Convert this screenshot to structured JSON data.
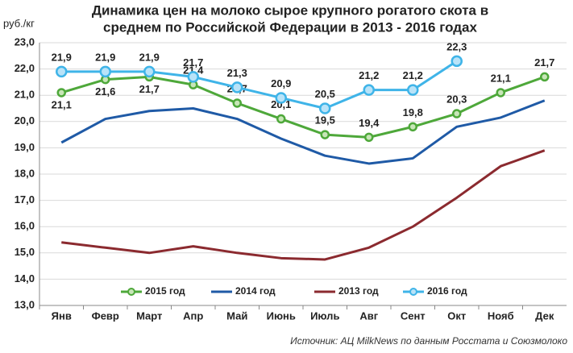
{
  "chart_data": {
    "type": "line",
    "title": [
      "Динамика цен на молоко сырое крупного рогатого скота в",
      "среднем по Российской Федерации в 2013 - 2016 годах"
    ],
    "y_label": "руб./кг",
    "source": "Источник: АЦ MilkNews по данным Росстата и Союзмолоко",
    "categories": [
      "Янв",
      "Февр",
      "Март",
      "Апр",
      "Май",
      "Июнь",
      "Июль",
      "Авг",
      "Сент",
      "Окт",
      "Нояб",
      "Дек"
    ],
    "ylim": [
      13,
      23
    ],
    "yticks": [
      {
        "value": 13,
        "label": "13,0"
      },
      {
        "value": 14,
        "label": "14,0"
      },
      {
        "value": 15,
        "label": "15,0"
      },
      {
        "value": 16,
        "label": "16,0"
      },
      {
        "value": 17,
        "label": "17,0"
      },
      {
        "value": 18,
        "label": "18,0"
      },
      {
        "value": 19,
        "label": "19,0"
      },
      {
        "value": 20,
        "label": "20,0"
      },
      {
        "value": 21,
        "label": "21,0"
      },
      {
        "value": 22,
        "label": "22,0"
      },
      {
        "value": 23,
        "label": "23,0"
      }
    ],
    "grid": true,
    "legend": "bottom",
    "series": [
      {
        "name": "2015 год",
        "color": "#4ea83a",
        "markers": true,
        "label_color": "#4a5a18",
        "values": [
          21.1,
          21.6,
          21.7,
          21.4,
          20.7,
          20.1,
          19.5,
          19.4,
          19.8,
          20.3,
          21.1,
          21.7
        ],
        "value_labels": [
          "21,1",
          "21,6",
          "21,7",
          "21,4",
          "20,7",
          "20,1",
          "19,5",
          "19,4",
          "19,8",
          "20,3",
          "21,1",
          "21,7"
        ]
      },
      {
        "name": "2014 год",
        "color": "#1f5aa6",
        "markers": false,
        "values": [
          19.2,
          20.1,
          20.4,
          20.5,
          20.1,
          19.35,
          18.7,
          18.4,
          18.6,
          19.8,
          20.15,
          20.8
        ]
      },
      {
        "name": "2013 год",
        "color": "#8b2a2f",
        "markers": false,
        "values": [
          15.4,
          15.2,
          15.0,
          15.25,
          15.0,
          14.8,
          14.75,
          15.2,
          16.0,
          17.1,
          18.3,
          18.9
        ]
      },
      {
        "name": "2016 год",
        "color": "#3fb4e8",
        "markers": true,
        "label_color": "#2a7dc2",
        "values": [
          21.9,
          21.9,
          21.9,
          21.7,
          21.3,
          20.9,
          20.5,
          21.2,
          21.2,
          22.3,
          null,
          null
        ],
        "value_labels": [
          "21,9",
          "21,9",
          "21,9",
          "21,7",
          "21,3",
          "20,9",
          "20,5",
          "21,2",
          "21,2",
          "22,3",
          null,
          null
        ]
      }
    ]
  }
}
